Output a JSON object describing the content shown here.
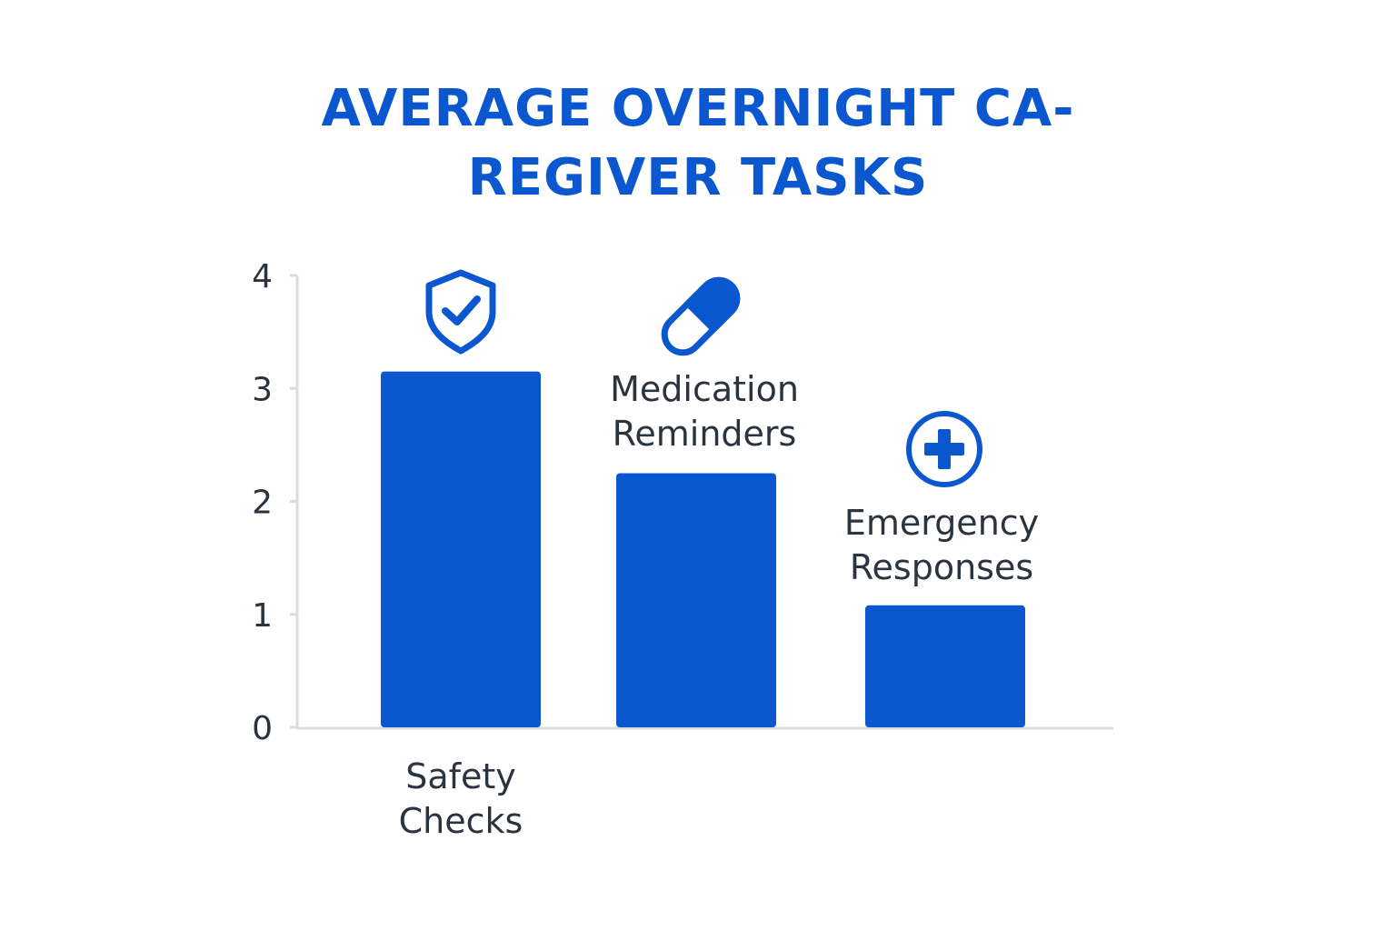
{
  "chart_data": {
    "type": "bar",
    "title_lines": [
      "AVERAGE OVERNIGHT CA-",
      "REGIVER TASKS"
    ],
    "categories": [
      {
        "label_lines": [
          "Safety",
          "Checks"
        ],
        "icon": "shield-check-icon"
      },
      {
        "label_lines": [
          "Medication",
          "Reminders"
        ],
        "icon": "pill-icon"
      },
      {
        "label_lines": [
          "Emergency",
          "Responses"
        ],
        "icon": "plus-circle-icon"
      }
    ],
    "values": [
      3.15,
      2.25,
      1.08
    ],
    "ylim": [
      0,
      4
    ],
    "yticks": [
      "0",
      "1",
      "2",
      "3",
      "4"
    ],
    "grid": false,
    "colors": {
      "bar": "#0b57d0",
      "axis": "#d9dce0",
      "text": "#2a3440",
      "title": "#0b57d0"
    }
  }
}
